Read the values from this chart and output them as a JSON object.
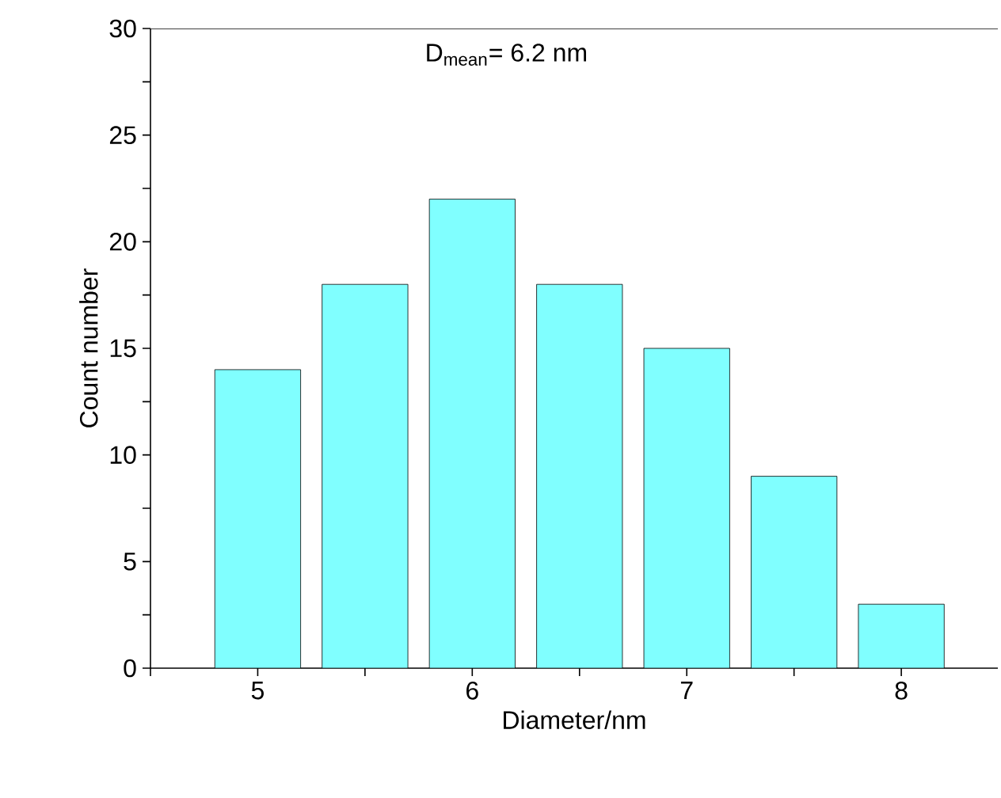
{
  "chart_data": {
    "type": "bar",
    "xlabel": "Diameter/nm",
    "ylabel": "Count number",
    "annotations": [
      "D$_{mean}$= 6.2 nm"
    ],
    "x": [
      5,
      5.5,
      6,
      6.5,
      7,
      7.5,
      8
    ],
    "values": [
      14,
      18,
      22,
      18,
      15,
      9,
      3
    ],
    "color": "#80ffff",
    "xlim": [
      4.5,
      8.45
    ],
    "xticks": [
      {
        "value": 4.5,
        "label": null
      },
      5,
      {
        "value": 5.5,
        "label": null
      },
      6,
      {
        "value": 6.5,
        "label": null
      },
      7,
      {
        "value": 7.5,
        "label": null
      },
      8
    ],
    "ylim": [
      0,
      30
    ],
    "yticks": [
      0,
      {
        "value": 2.5,
        "label": null
      },
      5,
      {
        "value": 7.5,
        "label": null
      },
      10,
      {
        "value": 12.5,
        "label": null
      },
      15,
      {
        "value": 17.5,
        "label": null
      },
      20,
      {
        "value": 22.5,
        "label": null
      },
      25,
      {
        "value": 27.5,
        "label": null
      },
      30
    ]
  }
}
